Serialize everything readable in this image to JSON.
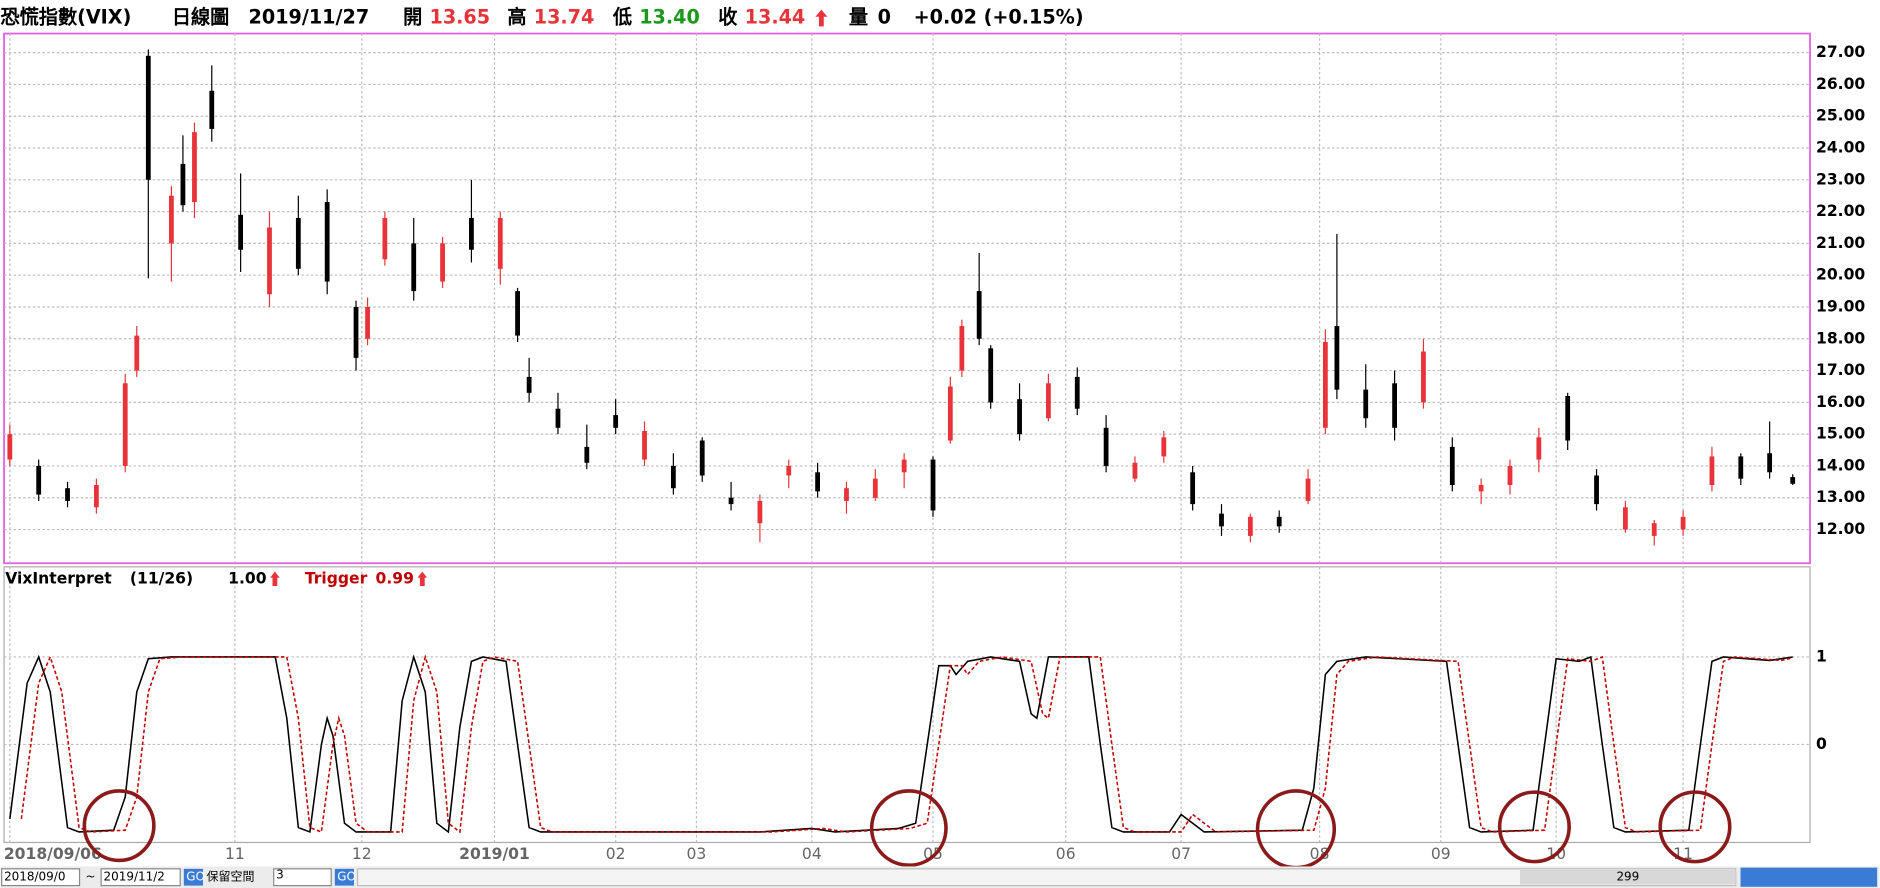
{
  "header": {
    "name": "恐慌指數(VIX)",
    "period": "日線圖",
    "date": "2019/11/27",
    "open_label": "開",
    "open": "13.65",
    "high_label": "高",
    "high": "13.74",
    "low_label": "低",
    "low": "13.40",
    "close_label": "收",
    "close": "13.44",
    "volume_label": "量",
    "volume": "0",
    "change": "+0.02 (+0.15%)"
  },
  "toolbar": {
    "from": "2018/09/0",
    "tilde": "~",
    "to": "2019/11/2",
    "go": "GO",
    "reserve_label": "保留空間",
    "reserve": "3",
    "count": "299"
  },
  "chart_data": [
    {
      "type": "candlestick",
      "up_color": "#e8333a",
      "down_color": "#000000",
      "grid": true,
      "xlim": [
        -1,
        312
      ],
      "ylim": [
        10.94,
        27.6
      ],
      "xticks": [
        {
          "value": 0,
          "label": "2018/09/06"
        },
        {
          "value": 39,
          "label": "11"
        },
        {
          "value": 61,
          "label": "12"
        },
        {
          "value": 84,
          "label": "2019/01"
        },
        {
          "value": 105,
          "label": "02"
        },
        {
          "value": 119,
          "label": "03"
        },
        {
          "value": 139,
          "label": "04"
        },
        {
          "value": 160,
          "label": "05"
        },
        {
          "value": 183,
          "label": "06"
        },
        {
          "value": 203,
          "label": "07"
        },
        {
          "value": 227,
          "label": "08"
        },
        {
          "value": 248,
          "label": "09"
        },
        {
          "value": 268,
          "label": "10"
        },
        {
          "value": 290,
          "label": "11"
        }
      ],
      "yticks": [
        {
          "value": 12,
          "label": "12.00"
        },
        {
          "value": 13,
          "label": "13.00"
        },
        {
          "value": 14,
          "label": "14.00"
        },
        {
          "value": 15,
          "label": "15.00"
        },
        {
          "value": 16,
          "label": "16.00"
        },
        {
          "value": 17,
          "label": "17.00"
        },
        {
          "value": 18,
          "label": "18.00"
        },
        {
          "value": 19,
          "label": "19.00"
        },
        {
          "value": 20,
          "label": "20.00"
        },
        {
          "value": 21,
          "label": "21.00"
        },
        {
          "value": 22,
          "label": "22.00"
        },
        {
          "value": 23,
          "label": "23.00"
        },
        {
          "value": 24,
          "label": "24.00"
        },
        {
          "value": 25,
          "label": "25.00"
        },
        {
          "value": 26,
          "label": "26.00"
        },
        {
          "value": 27,
          "label": "27.00"
        }
      ],
      "x": [
        0,
        5,
        10,
        15,
        20,
        22,
        24,
        28,
        30,
        32,
        35,
        40,
        45,
        50,
        55,
        60,
        62,
        65,
        70,
        75,
        80,
        85,
        88,
        90,
        95,
        100,
        105,
        110,
        115,
        120,
        125,
        130,
        135,
        140,
        145,
        150,
        155,
        160,
        163,
        165,
        168,
        170,
        175,
        180,
        185,
        190,
        195,
        200,
        205,
        210,
        215,
        220,
        225,
        228,
        230,
        235,
        240,
        245,
        250,
        255,
        260,
        265,
        270,
        275,
        280,
        285,
        290,
        295,
        300,
        305,
        309
      ],
      "open": [
        14.2,
        14.0,
        13.3,
        12.7,
        14.0,
        17.0,
        26.9,
        21.0,
        23.5,
        22.3,
        25.8,
        21.9,
        19.4,
        21.8,
        22.3,
        19.0,
        18.0,
        20.5,
        21.0,
        19.8,
        21.8,
        20.2,
        19.5,
        16.8,
        15.8,
        14.6,
        15.6,
        14.2,
        14.0,
        14.8,
        13.0,
        12.2,
        13.7,
        13.8,
        12.9,
        13.0,
        13.8,
        14.2,
        14.8,
        17.0,
        19.5,
        17.7,
        16.1,
        15.5,
        16.8,
        15.2,
        13.6,
        14.3,
        13.8,
        12.5,
        11.8,
        12.4,
        12.9,
        15.2,
        18.4,
        16.4,
        16.6,
        16.0,
        14.6,
        13.2,
        13.4,
        14.2,
        16.2,
        13.7,
        12.0,
        11.8,
        12.0,
        13.4,
        14.3,
        14.4,
        13.65
      ],
      "high": [
        15.3,
        14.2,
        13.5,
        13.6,
        16.9,
        18.4,
        27.1,
        22.8,
        24.4,
        24.8,
        26.6,
        23.2,
        22.0,
        22.5,
        22.7,
        19.2,
        19.3,
        22.0,
        21.8,
        21.2,
        23.0,
        22.0,
        19.6,
        17.4,
        16.3,
        15.3,
        16.1,
        15.4,
        14.4,
        14.9,
        13.5,
        13.1,
        14.2,
        14.1,
        13.5,
        13.9,
        14.4,
        14.3,
        16.8,
        18.6,
        20.7,
        17.8,
        16.6,
        16.9,
        17.1,
        15.6,
        14.3,
        15.1,
        14.0,
        12.8,
        12.5,
        12.6,
        13.9,
        18.3,
        21.3,
        17.2,
        17.0,
        18.0,
        14.9,
        13.6,
        14.2,
        15.2,
        16.3,
        13.9,
        12.9,
        12.3,
        12.6,
        14.6,
        14.4,
        15.4,
        13.74
      ],
      "low": [
        14.0,
        12.9,
        12.7,
        12.5,
        13.8,
        16.8,
        19.9,
        19.8,
        22.0,
        21.8,
        24.2,
        20.1,
        19.0,
        20.0,
        19.4,
        17.0,
        17.8,
        20.3,
        19.2,
        19.6,
        20.4,
        19.7,
        17.9,
        16.0,
        15.0,
        13.9,
        15.0,
        14.0,
        13.1,
        13.5,
        12.6,
        11.6,
        13.3,
        13.0,
        12.5,
        12.9,
        13.3,
        12.4,
        14.7,
        16.8,
        17.8,
        15.8,
        14.8,
        15.4,
        15.6,
        13.8,
        13.5,
        14.1,
        12.6,
        11.8,
        11.6,
        11.9,
        12.8,
        15.0,
        16.1,
        15.2,
        14.8,
        15.8,
        13.2,
        12.8,
        13.1,
        13.8,
        14.5,
        12.6,
        11.9,
        11.5,
        11.8,
        13.2,
        13.4,
        13.6,
        13.4
      ],
      "close": [
        15.0,
        13.1,
        12.9,
        13.4,
        16.6,
        18.1,
        23.0,
        22.5,
        22.2,
        24.5,
        24.6,
        20.8,
        21.5,
        20.2,
        19.8,
        17.4,
        19.0,
        21.8,
        19.5,
        21.0,
        20.8,
        21.8,
        18.1,
        16.3,
        15.2,
        14.1,
        15.2,
        15.1,
        13.3,
        13.7,
        12.8,
        12.9,
        14.0,
        13.2,
        13.3,
        13.6,
        14.2,
        12.6,
        16.5,
        18.4,
        18.0,
        16.0,
        15.0,
        16.6,
        15.8,
        14.0,
        14.1,
        14.9,
        12.8,
        12.1,
        12.4,
        12.1,
        13.6,
        17.9,
        16.4,
        15.5,
        15.2,
        17.6,
        13.4,
        13.4,
        14.0,
        14.9,
        14.8,
        12.8,
        12.7,
        12.2,
        12.4,
        14.3,
        13.6,
        13.8,
        13.44
      ]
    },
    {
      "type": "line",
      "subtitle": "(11/26)",
      "grid": true,
      "xlim": [
        -1,
        312
      ],
      "ylim": [
        -1.12,
        2.03
      ],
      "yticks": [
        0,
        1
      ],
      "series": [
        {
          "name": "VixInterpret",
          "color": "#000000",
          "dashed": false,
          "last_value_label": "1.00",
          "x": [
            0,
            3,
            5,
            7,
            10,
            12,
            18,
            20,
            22,
            24,
            28,
            46,
            48,
            50,
            52,
            54,
            55,
            56,
            58,
            60,
            66,
            68,
            70,
            72,
            74,
            76,
            78,
            80,
            82,
            86,
            88,
            90,
            92,
            130,
            139,
            143,
            154,
            157,
            159,
            161,
            163,
            164,
            166,
            170,
            175,
            177,
            178,
            180,
            187,
            189,
            191,
            193,
            201,
            203,
            205,
            207,
            224,
            226,
            228,
            230,
            235,
            249,
            251,
            253,
            255,
            264,
            266,
            268,
            272,
            274,
            276,
            278,
            280,
            291,
            293,
            295,
            297,
            305,
            309
          ],
          "values": [
            -0.85,
            0.7,
            1,
            0.6,
            -0.95,
            -1,
            -0.98,
            -0.6,
            0.6,
            0.98,
            1,
            1,
            0.3,
            -0.95,
            -1,
            0,
            0.3,
            0.1,
            -0.9,
            -1,
            -1,
            0.5,
            1,
            0.6,
            -0.9,
            -1,
            0.2,
            0.95,
            1,
            0.95,
            0,
            -0.95,
            -1,
            -1,
            -0.96,
            -1,
            -0.96,
            -0.9,
            0,
            0.9,
            0.9,
            0.8,
            0.95,
            1,
            0.95,
            0.35,
            0.3,
            1,
            1,
            0,
            -0.95,
            -1,
            -1,
            -0.8,
            -0.9,
            -1,
            -0.98,
            -0.5,
            0.8,
            0.95,
            1,
            0.95,
            0,
            -0.95,
            -1,
            -0.98,
            0,
            0.98,
            0.95,
            1,
            0,
            -0.95,
            -1,
            -0.98,
            0,
            0.95,
            1,
            0.96,
            1
          ]
        },
        {
          "name": "Trigger",
          "color": "#c00000",
          "dashed": true,
          "last_value_label": "0.99",
          "x": [
            2,
            5,
            7,
            9,
            12,
            14,
            20,
            22,
            24,
            26,
            30,
            48,
            50,
            52,
            54,
            56,
            57,
            58,
            60,
            62,
            68,
            70,
            72,
            74,
            76,
            78,
            80,
            82,
            84,
            88,
            90,
            92,
            94,
            132,
            141,
            145,
            156,
            159,
            161,
            163,
            165,
            166,
            168,
            172,
            177,
            179,
            180,
            182,
            189,
            191,
            193,
            195,
            203,
            205,
            207,
            209,
            226,
            228,
            230,
            232,
            237,
            251,
            253,
            255,
            257,
            266,
            268,
            270,
            274,
            276,
            278,
            280,
            282,
            293,
            295,
            297,
            299,
            307,
            309
          ],
          "values": [
            -0.85,
            0.7,
            1,
            0.6,
            -0.95,
            -1,
            -0.98,
            -0.6,
            0.6,
            0.98,
            1,
            1,
            0.3,
            -0.95,
            -1,
            0,
            0.3,
            0.1,
            -0.9,
            -1,
            -1,
            0.5,
            1,
            0.6,
            -0.9,
            -1,
            0.2,
            0.95,
            1,
            0.95,
            0,
            -0.95,
            -1,
            -1,
            -0.96,
            -1,
            -0.96,
            -0.9,
            0,
            0.9,
            0.9,
            0.8,
            0.95,
            1,
            0.95,
            0.35,
            0.3,
            1,
            1,
            0,
            -0.95,
            -1,
            -1,
            -0.8,
            -0.9,
            -1,
            -0.98,
            -0.5,
            0.8,
            0.95,
            1,
            0.95,
            0,
            -0.95,
            -1,
            -0.98,
            0,
            0.98,
            0.95,
            1,
            0,
            -0.95,
            -1,
            -0.98,
            0,
            0.95,
            1,
            0.96,
            0.99
          ]
        }
      ]
    }
  ]
}
